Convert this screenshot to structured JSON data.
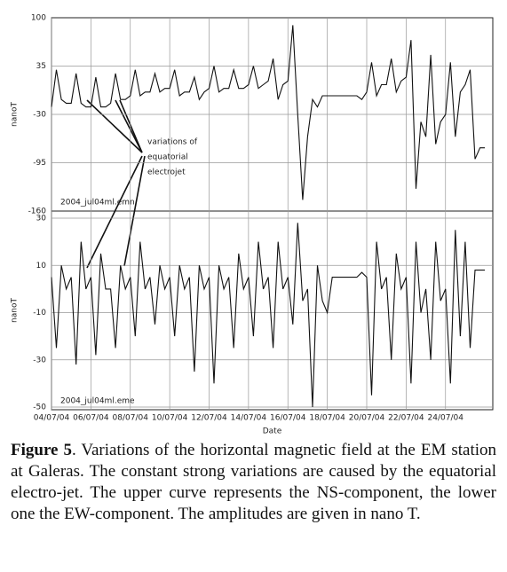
{
  "chart_data": [
    {
      "type": "line",
      "y_label": "nanoT",
      "label": "2004_jul04ml.emn",
      "annotation": [
        "variations of",
        "equatorial",
        "electrojet"
      ],
      "color": "#111111",
      "grid": true,
      "xlim": [
        4,
        26.4
      ],
      "ylim": [
        -160,
        100
      ],
      "yticks": [
        100,
        35,
        -30,
        -95,
        -160
      ],
      "x": [
        4,
        4.25,
        4.5,
        4.75,
        5,
        5.25,
        5.5,
        5.75,
        6,
        6.25,
        6.5,
        6.75,
        7,
        7.25,
        7.5,
        7.75,
        8,
        8.25,
        8.5,
        8.75,
        9,
        9.25,
        9.5,
        9.75,
        10,
        10.25,
        10.5,
        10.75,
        11,
        11.25,
        11.5,
        11.75,
        12,
        12.25,
        12.5,
        12.75,
        13,
        13.25,
        13.5,
        13.75,
        14,
        14.25,
        14.5,
        14.75,
        15,
        15.25,
        15.5,
        15.75,
        16,
        16.25,
        16.5,
        16.75,
        17,
        17.25,
        17.5,
        17.75,
        18,
        18.25,
        18.5,
        18.75,
        19,
        19.25,
        19.5,
        19.75,
        20,
        20.25,
        20.5,
        20.75,
        21,
        21.25,
        21.5,
        21.75,
        22,
        22.25,
        22.5,
        22.75,
        23,
        23.25,
        23.5,
        23.75,
        24,
        24.25,
        24.5,
        24.75,
        25,
        25.25,
        25.5,
        25.75,
        26
      ],
      "values": [
        -20,
        30,
        -10,
        -15,
        -15,
        25,
        -15,
        -20,
        -20,
        20,
        -20,
        -20,
        -15,
        25,
        -10,
        -10,
        -5,
        30,
        -5,
        0,
        0,
        25,
        0,
        5,
        5,
        30,
        -5,
        0,
        0,
        20,
        -10,
        0,
        5,
        35,
        0,
        5,
        5,
        30,
        5,
        5,
        10,
        35,
        5,
        10,
        15,
        45,
        -10,
        10,
        15,
        90,
        -30,
        -145,
        -60,
        -10,
        -20,
        -5,
        -5,
        -5,
        -5,
        -5,
        -5,
        -5,
        -5,
        -10,
        0,
        40,
        -5,
        10,
        10,
        45,
        0,
        15,
        20,
        70,
        -130,
        -40,
        -60,
        50,
        -70,
        -40,
        -30,
        40,
        -60,
        0,
        10,
        30,
        -90,
        -75,
        -75
      ]
    },
    {
      "type": "line",
      "y_label": "nanoT",
      "x_label": "Date",
      "label": "2004_jul04ml.eme",
      "color": "#111111",
      "grid": true,
      "xlim": [
        4,
        26.4
      ],
      "ylim": [
        -50,
        30
      ],
      "yticks": [
        30,
        10,
        -10,
        -30,
        -50
      ],
      "xticks": [
        {
          "value": 4,
          "label": "04/07/04"
        },
        {
          "value": 6,
          "label": "06/07/04"
        },
        {
          "value": 8,
          "label": "08/07/04"
        },
        {
          "value": 10,
          "label": "10/07/04"
        },
        {
          "value": 12,
          "label": "12/07/04"
        },
        {
          "value": 14,
          "label": "14/07/04"
        },
        {
          "value": 16,
          "label": "16/07/04"
        },
        {
          "value": 18,
          "label": "18/07/04"
        },
        {
          "value": 20,
          "label": "20/07/04"
        },
        {
          "value": 22,
          "label": "22/07/04"
        },
        {
          "value": 24,
          "label": "24/07/04"
        }
      ],
      "x": [
        4,
        4.25,
        4.5,
        4.75,
        5,
        5.25,
        5.5,
        5.75,
        6,
        6.25,
        6.5,
        6.75,
        7,
        7.25,
        7.5,
        7.75,
        8,
        8.25,
        8.5,
        8.75,
        9,
        9.25,
        9.5,
        9.75,
        10,
        10.25,
        10.5,
        10.75,
        11,
        11.25,
        11.5,
        11.75,
        12,
        12.25,
        12.5,
        12.75,
        13,
        13.25,
        13.5,
        13.75,
        14,
        14.25,
        14.5,
        14.75,
        15,
        15.25,
        15.5,
        15.75,
        16,
        16.25,
        16.5,
        16.75,
        17,
        17.25,
        17.5,
        17.75,
        18,
        18.25,
        18.5,
        18.75,
        19,
        19.25,
        19.5,
        19.75,
        20,
        20.25,
        20.5,
        20.75,
        21,
        21.25,
        21.5,
        21.75,
        22,
        22.25,
        22.5,
        22.75,
        23,
        23.25,
        23.5,
        23.75,
        24,
        24.25,
        24.5,
        24.75,
        25,
        25.25,
        25.5,
        25.75,
        26
      ],
      "values": [
        5,
        -25,
        10,
        0,
        5,
        -32,
        20,
        0,
        5,
        -28,
        15,
        0,
        0,
        -25,
        10,
        0,
        5,
        -20,
        20,
        0,
        5,
        -15,
        10,
        0,
        5,
        -20,
        10,
        0,
        5,
        -35,
        10,
        0,
        5,
        -40,
        10,
        0,
        5,
        -25,
        15,
        0,
        5,
        -20,
        20,
        0,
        5,
        -25,
        20,
        0,
        5,
        -15,
        28,
        -5,
        0,
        -50,
        10,
        -5,
        -10,
        5,
        5,
        5,
        5,
        5,
        5,
        7,
        5,
        -45,
        20,
        0,
        5,
        -30,
        15,
        0,
        5,
        -40,
        20,
        -10,
        0,
        -30,
        20,
        -5,
        0,
        -40,
        25,
        -20,
        20,
        -25,
        8,
        8,
        8
      ]
    }
  ],
  "caption": {
    "label": "Figure 5",
    "text": ". Variations of the horizontal magnetic field at the EM station at Galeras. The constant strong variations are caused by the equatorial electro-jet. The upper curve represents the NS-component, the lower one the EW-component. The amplitudes are given in nano T."
  }
}
